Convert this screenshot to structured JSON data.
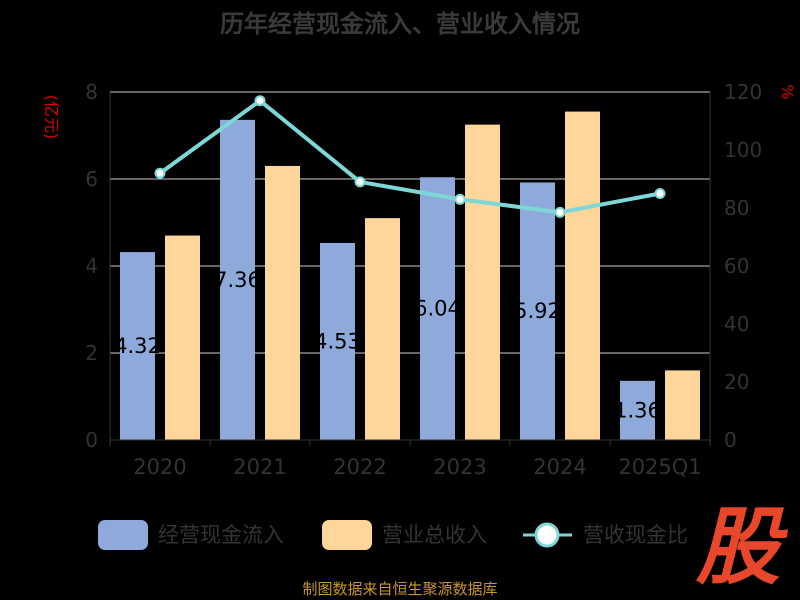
{
  "chart_data": {
    "type": "bar",
    "title": "历年经营现金流入、营业收入情况",
    "categories": [
      "2020",
      "2021",
      "2022",
      "2023",
      "2024",
      "2025Q1"
    ],
    "y_left": {
      "label": "(亿元)",
      "ylim": [
        0,
        8
      ],
      "ticks": [
        "0",
        "2",
        "4",
        "6",
        "8"
      ]
    },
    "y_right": {
      "label": "%",
      "ylim": [
        0,
        120
      ],
      "ticks": [
        "0",
        "20",
        "40",
        "60",
        "80",
        "100",
        "120"
      ]
    },
    "series": [
      {
        "name": "经营现金流入",
        "type": "bar",
        "axis": "left",
        "color": "#8eaadb",
        "values": [
          4.32,
          7.36,
          4.53,
          6.04,
          5.92,
          1.36
        ],
        "labels": [
          "4.32",
          "7.36",
          "4.53",
          "6.04",
          "5.92",
          "1.36"
        ]
      },
      {
        "name": "营业总收入",
        "type": "bar",
        "axis": "left",
        "color": "#ffd699",
        "values": [
          4.7,
          6.3,
          5.1,
          7.25,
          7.55,
          1.6
        ]
      },
      {
        "name": "营收现金比",
        "type": "line",
        "axis": "right",
        "color": "#7fd6d6",
        "values": [
          92,
          117,
          89,
          83,
          78.5,
          85
        ]
      }
    ],
    "grid": true,
    "legend": "bottom"
  },
  "source": "制图数据来自恒生聚源数据库",
  "watermark": "股"
}
